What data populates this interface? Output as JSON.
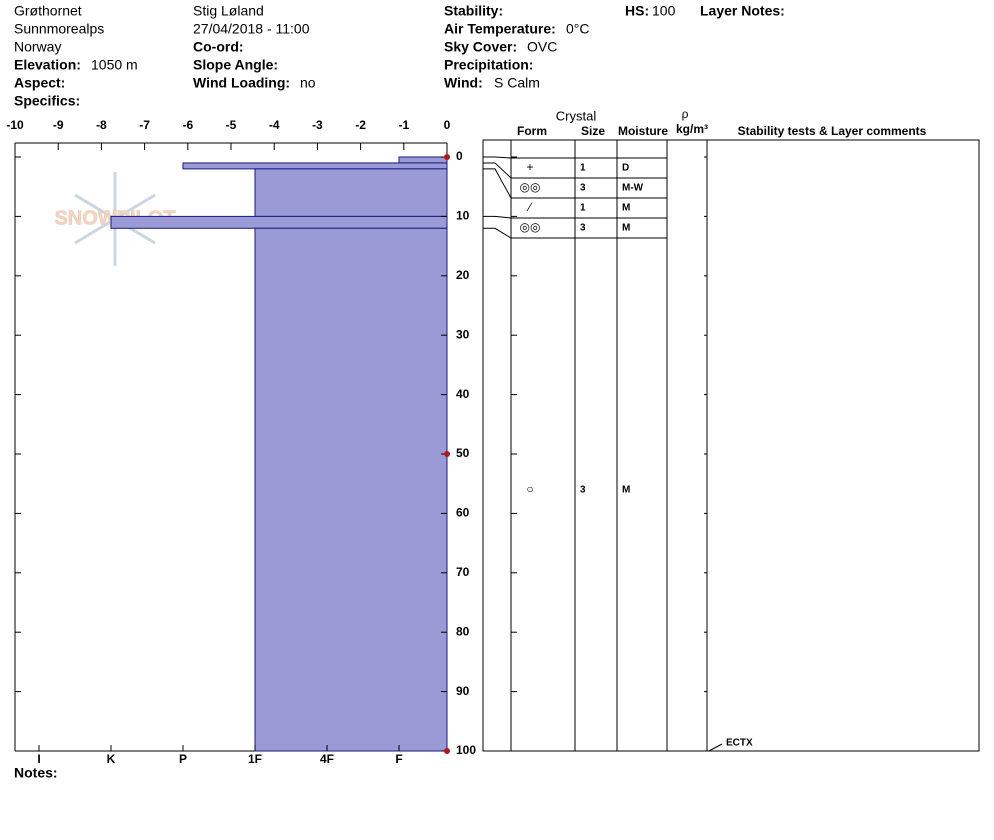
{
  "header": {
    "location": "Grøthornet",
    "range": "Sunnmorealps",
    "country": "Norway",
    "elevation_label": "Elevation:",
    "elevation": "1050 m",
    "aspect_label": "Aspect:",
    "specifics_label": "Specifics:",
    "observer": "Stig Løland",
    "datetime": "27/04/2018 - 11:00",
    "coord_label": "Co-ord:",
    "slope_label": "Slope Angle:",
    "wind_loading_label": "Wind Loading:",
    "wind_loading": "no",
    "stability_label": "Stability:",
    "air_temp_label": "Air Temperature:",
    "air_temp": "0°C",
    "sky_label": "Sky Cover:",
    "sky": "OVC",
    "precip_label": "Precipitation:",
    "wind_label": "Wind:",
    "wind": "S Calm",
    "hs_label": "HS:",
    "hs": 100,
    "layer_notes_label": "Layer Notes:"
  },
  "logo": "SNOWPILOT",
  "notes_label": "Notes:",
  "chart_data": {
    "type": "profile",
    "color": "#9a9ad6",
    "xlim": [
      -10,
      0
    ],
    "xticks": [
      -10,
      -9,
      -8,
      -7,
      -6,
      -5,
      -4,
      -3,
      -2,
      -1,
      0
    ],
    "ylim": [
      0,
      100
    ],
    "yticks": [
      0,
      10,
      20,
      30,
      40,
      50,
      60,
      70,
      80,
      90,
      100
    ],
    "hardness_scale": [
      "F",
      "4F",
      "1F",
      "P",
      "K",
      "I"
    ],
    "temperature": {
      "depth": [
        0,
        50,
        100
      ],
      "values": [
        0,
        0,
        0
      ]
    },
    "layers": [
      {
        "top": 0,
        "bottom": 1,
        "hardness": "F",
        "form": "+",
        "size": 1,
        "moisture": "D"
      },
      {
        "top": 1,
        "bottom": 2,
        "hardness": "P",
        "form": "◎◎",
        "size": 3,
        "moisture": "M-W"
      },
      {
        "top": 2,
        "bottom": 10,
        "hardness": "1F",
        "form": "⁄",
        "size": 1,
        "moisture": "M"
      },
      {
        "top": 10,
        "bottom": 12,
        "hardness": "K",
        "form": "◎◎",
        "size": 3,
        "moisture": "M"
      },
      {
        "top": 12,
        "bottom": 100,
        "hardness": "1F",
        "form": "○",
        "size": 3,
        "moisture": "M"
      }
    ],
    "table_headers": {
      "crystal": "Crystal",
      "form": "Form",
      "size": "Size",
      "moisture": "Moisture",
      "rho": "ρ",
      "density_unit": "kg/m³",
      "comments": "Stability tests & Layer comments"
    },
    "tests": [
      {
        "depth": 100,
        "label": "ECTX"
      }
    ]
  }
}
